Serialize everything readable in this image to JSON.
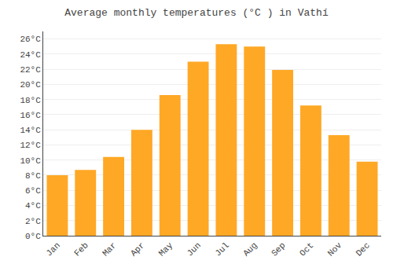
{
  "chart_data": {
    "type": "bar",
    "title": "Average monthly temperatures (°C ) in Vathí",
    "categories": [
      "Jan",
      "Feb",
      "Mar",
      "Apr",
      "May",
      "Jun",
      "Jul",
      "Aug",
      "Sep",
      "Oct",
      "Nov",
      "Dec"
    ],
    "values": [
      8.0,
      8.7,
      10.4,
      14.0,
      18.6,
      23.0,
      25.3,
      25.0,
      21.9,
      17.2,
      13.3,
      9.8
    ],
    "color": "#FFA826",
    "ylim": [
      0,
      27
    ],
    "yticks": [
      {
        "value": 0,
        "label": "0°C"
      },
      {
        "value": 2,
        "label": "2°C"
      },
      {
        "value": 4,
        "label": "4°C"
      },
      {
        "value": 6,
        "label": "6°C"
      },
      {
        "value": 8,
        "label": "8°C"
      },
      {
        "value": 10,
        "label": "10°C"
      },
      {
        "value": 12,
        "label": "12°C"
      },
      {
        "value": 14,
        "label": "14°C"
      },
      {
        "value": 16,
        "label": "16°C"
      },
      {
        "value": 18,
        "label": "18°C"
      },
      {
        "value": 20,
        "label": "20°C"
      },
      {
        "value": 22,
        "label": "22°C"
      },
      {
        "value": 24,
        "label": "24°C"
      },
      {
        "value": 26,
        "label": "26°C"
      }
    ],
    "grid": true
  }
}
